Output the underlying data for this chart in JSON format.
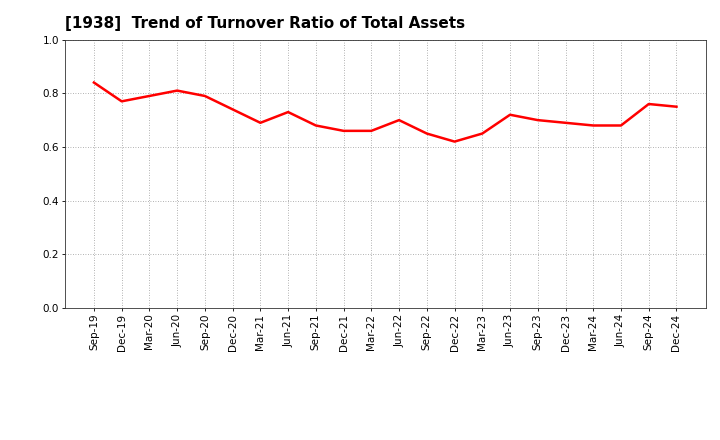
{
  "title": "[1938]  Trend of Turnover Ratio of Total Assets",
  "x_labels": [
    "Sep-19",
    "Dec-19",
    "Mar-20",
    "Jun-20",
    "Sep-20",
    "Dec-20",
    "Mar-21",
    "Jun-21",
    "Sep-21",
    "Dec-21",
    "Mar-22",
    "Jun-22",
    "Sep-22",
    "Dec-22",
    "Mar-23",
    "Jun-23",
    "Sep-23",
    "Dec-23",
    "Mar-24",
    "Jun-24",
    "Sep-24",
    "Dec-24"
  ],
  "values": [
    0.84,
    0.77,
    0.79,
    0.81,
    0.79,
    0.74,
    0.69,
    0.73,
    0.68,
    0.66,
    0.66,
    0.7,
    0.65,
    0.62,
    0.65,
    0.72,
    0.7,
    0.69,
    0.68,
    0.68,
    0.76,
    0.75
  ],
  "line_color": "#FF0000",
  "line_width": 1.8,
  "ylim": [
    0.0,
    1.0
  ],
  "yticks": [
    0.0,
    0.2,
    0.4,
    0.6,
    0.8,
    1.0
  ],
  "background_color": "#FFFFFF",
  "grid_color": "#999999",
  "title_fontsize": 11,
  "tick_fontsize": 7.5
}
